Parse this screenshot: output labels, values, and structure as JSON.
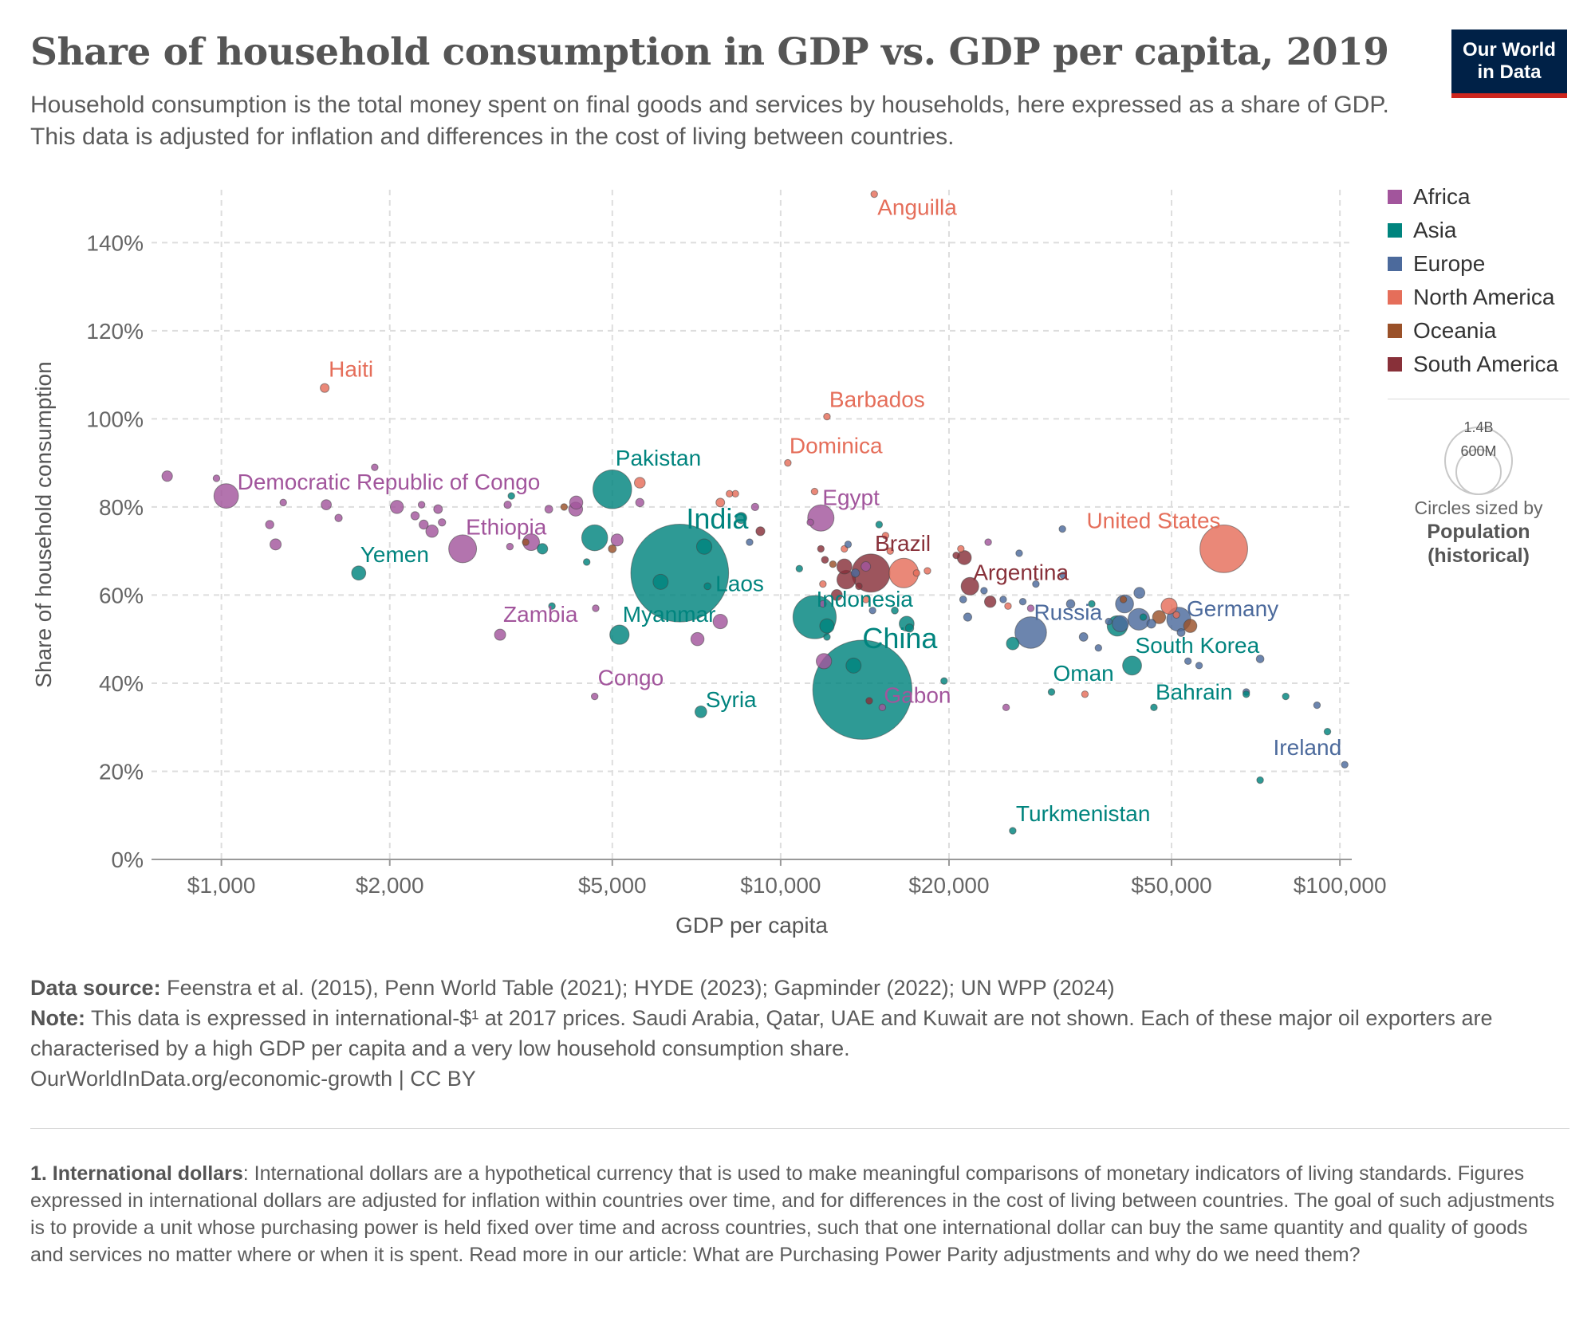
{
  "header": {
    "title": "Share of household consumption in GDP vs. GDP per capita, 2019",
    "subtitle": "Household consumption is the total money spent on final goods and services by households, here expressed as a share of GDP. This data is adjusted for inflation and differences in the cost of living between countries."
  },
  "logo": {
    "line1": "Our World",
    "line2": "in Data"
  },
  "colors": {
    "Africa": "#a2559c",
    "Asia": "#00847e",
    "Europe": "#4c6a9c",
    "North America": "#e56e5a",
    "Oceania": "#9a5129",
    "South America": "#883039"
  },
  "legend": {
    "items": [
      "Africa",
      "Asia",
      "Europe",
      "North America",
      "Oceania",
      "South America"
    ],
    "size_max_label": "1.4B",
    "size_min_label": "600M",
    "size_note": "Circles sized by",
    "size_metric_line1": "Population",
    "size_metric_line2": "(historical)"
  },
  "chart_data": {
    "type": "scatter",
    "x_scale": "log",
    "xlabel": "GDP per capita",
    "ylabel": "Share of household consumption",
    "xlim": [
      750,
      105000
    ],
    "ylim": [
      0,
      152
    ],
    "x_ticks": [
      1000,
      2000,
      5000,
      10000,
      20000,
      50000,
      100000
    ],
    "x_tick_labels": [
      "$1,000",
      "$2,000",
      "$5,000",
      "$10,000",
      "$20,000",
      "$50,000",
      "$100,000"
    ],
    "y_ticks": [
      0,
      20,
      40,
      60,
      80,
      100,
      120,
      140
    ],
    "y_tick_labels": [
      "0%",
      "20%",
      "40%",
      "60%",
      "80%",
      "100%",
      "120%",
      "140%"
    ],
    "grid": true,
    "labeled_points": [
      {
        "name": "Anguilla",
        "x": 14700,
        "y": 151,
        "region": "North America",
        "pop_m": 0.015
      },
      {
        "name": "Haiti",
        "x": 1530,
        "y": 107,
        "region": "North America",
        "pop_m": 11.3
      },
      {
        "name": "Barbados",
        "x": 12100,
        "y": 100.5,
        "region": "North America",
        "pop_m": 0.28
      },
      {
        "name": "Dominica",
        "x": 10300,
        "y": 90,
        "region": "North America",
        "pop_m": 0.07
      },
      {
        "name": "Democratic Republic of Congo",
        "x": 1020,
        "y": 82.5,
        "region": "Africa",
        "pop_m": 87
      },
      {
        "name": "Pakistan",
        "x": 5000,
        "y": 84,
        "region": "Asia",
        "pop_m": 216
      },
      {
        "name": "Egypt",
        "x": 11800,
        "y": 77.5,
        "region": "Africa",
        "pop_m": 100
      },
      {
        "name": "India",
        "x": 6600,
        "y": 65,
        "region": "Asia",
        "pop_m": 1380
      },
      {
        "name": "Laos",
        "x": 7400,
        "y": 62,
        "region": "Asia",
        "pop_m": 7
      },
      {
        "name": "Ethiopia",
        "x": 2700,
        "y": 70.5,
        "region": "Africa",
        "pop_m": 112
      },
      {
        "name": "Yemen",
        "x": 1760,
        "y": 65,
        "region": "Asia",
        "pop_m": 29
      },
      {
        "name": "Brazil",
        "x": 14500,
        "y": 65,
        "region": "South America",
        "pop_m": 211
      },
      {
        "name": "Indonesia",
        "x": 11500,
        "y": 55,
        "region": "Asia",
        "pop_m": 270
      },
      {
        "name": "Argentina",
        "x": 21800,
        "y": 62,
        "region": "South America",
        "pop_m": 45
      },
      {
        "name": "United States",
        "x": 62000,
        "y": 70.5,
        "region": "North America",
        "pop_m": 328
      },
      {
        "name": "Germany",
        "x": 51500,
        "y": 54.5,
        "region": "Europe",
        "pop_m": 83
      },
      {
        "name": "Russia",
        "x": 28000,
        "y": 51.5,
        "region": "Europe",
        "pop_m": 144
      },
      {
        "name": "South Korea",
        "x": 42500,
        "y": 44,
        "region": "Asia",
        "pop_m": 52
      },
      {
        "name": "Zambia",
        "x": 3150,
        "y": 51,
        "region": "Africa",
        "pop_m": 18
      },
      {
        "name": "Myanmar",
        "x": 5150,
        "y": 51,
        "region": "Asia",
        "pop_m": 54
      },
      {
        "name": "China",
        "x": 14000,
        "y": 38.5,
        "region": "Asia",
        "pop_m": 1420
      },
      {
        "name": "Congo",
        "x": 4650,
        "y": 37,
        "region": "Africa",
        "pop_m": 5.4
      },
      {
        "name": "Syria",
        "x": 7200,
        "y": 33.5,
        "region": "Asia",
        "pop_m": 20
      },
      {
        "name": "Gabon",
        "x": 15200,
        "y": 34.5,
        "region": "Africa",
        "pop_m": 2.2
      },
      {
        "name": "Oman",
        "x": 30500,
        "y": 38,
        "region": "Asia",
        "pop_m": 4.9
      },
      {
        "name": "Bahrain",
        "x": 46500,
        "y": 34.5,
        "region": "Asia",
        "pop_m": 1.6
      },
      {
        "name": "Ireland",
        "x": 102000,
        "y": 21.5,
        "region": "Europe",
        "pop_m": 4.9
      },
      {
        "name": "Turkmenistan",
        "x": 26000,
        "y": 6.5,
        "region": "Asia",
        "pop_m": 6
      }
    ],
    "points": [
      [
        800,
        87,
        "Africa",
        16
      ],
      [
        980,
        86.5,
        "Africa",
        6
      ],
      [
        1220,
        76,
        "Africa",
        10
      ],
      [
        1250,
        71.5,
        "Africa",
        18
      ],
      [
        1290,
        81,
        "Africa",
        6
      ],
      [
        1540,
        80.5,
        "Africa",
        15
      ],
      [
        1620,
        77.5,
        "Africa",
        8
      ],
      [
        1880,
        89,
        "Africa",
        2
      ],
      [
        2060,
        80,
        "Africa",
        25
      ],
      [
        2220,
        78,
        "Africa",
        10
      ],
      [
        2280,
        80.5,
        "Africa",
        5
      ],
      [
        2300,
        76,
        "Africa",
        12
      ],
      [
        2380,
        74.5,
        "Africa",
        22
      ],
      [
        2440,
        79.5,
        "Africa",
        11
      ],
      [
        2480,
        76.5,
        "Africa",
        8
      ],
      [
        3250,
        80.5,
        "Africa",
        8
      ],
      [
        3280,
        71,
        "Africa",
        6
      ],
      [
        3580,
        72,
        "Africa",
        40
      ],
      [
        3850,
        79.5,
        "Africa",
        9
      ],
      [
        4300,
        79.5,
        "Africa",
        28
      ],
      [
        4310,
        81,
        "Africa",
        25
      ],
      [
        4670,
        57,
        "Africa",
        6
      ],
      [
        5100,
        72.5,
        "Africa",
        21
      ],
      [
        5600,
        81,
        "Africa",
        10
      ],
      [
        7100,
        50,
        "Africa",
        25
      ],
      [
        7800,
        54,
        "Africa",
        30
      ],
      [
        9000,
        80,
        "Africa",
        8
      ],
      [
        11300,
        76.5,
        "Africa",
        2
      ],
      [
        11900,
        58,
        "Africa",
        1.3
      ],
      [
        11950,
        45,
        "Africa",
        34
      ],
      [
        14200,
        66.5,
        "Africa",
        13
      ],
      [
        23500,
        72,
        "Africa",
        2.5
      ],
      [
        25300,
        34.5,
        "Africa",
        1.3
      ],
      [
        28000,
        57,
        "Africa",
        0.9
      ],
      [
        3300,
        82.5,
        "Asia",
        1
      ],
      [
        3750,
        70.5,
        "Asia",
        16
      ],
      [
        3900,
        57.5,
        "Asia",
        0.8
      ],
      [
        4500,
        67.5,
        "Asia",
        2
      ],
      [
        4650,
        73,
        "Asia",
        97
      ],
      [
        6100,
        63,
        "Asia",
        33
      ],
      [
        7300,
        71,
        "Asia",
        34
      ],
      [
        8500,
        77.5,
        "Asia",
        18
      ],
      [
        10800,
        66,
        "Asia",
        4
      ],
      [
        12100,
        50.5,
        "Asia",
        6
      ],
      [
        12100,
        53,
        "Asia",
        30
      ],
      [
        13500,
        44,
        "Asia",
        33
      ],
      [
        15000,
        76,
        "Asia",
        2
      ],
      [
        16000,
        56.5,
        "Asia",
        7
      ],
      [
        16800,
        53.5,
        "Asia",
        32
      ],
      [
        17000,
        52.5,
        "Asia",
        10
      ],
      [
        19600,
        40.5,
        "Asia",
        4
      ],
      [
        26000,
        49,
        "Asia",
        23
      ],
      [
        36000,
        58,
        "Asia",
        3
      ],
      [
        40000,
        53,
        "Asia",
        60
      ],
      [
        44500,
        55,
        "Asia",
        0.8
      ],
      [
        68000,
        37.5,
        "Asia",
        0.5
      ],
      [
        80000,
        37,
        "Asia",
        1.2
      ],
      [
        95000,
        29,
        "Asia",
        5.7
      ],
      [
        72000,
        18,
        "Asia",
        0.6
      ],
      [
        8800,
        72,
        "Europe",
        3
      ],
      [
        13200,
        71.5,
        "Europe",
        2
      ],
      [
        13600,
        65,
        "Europe",
        10
      ],
      [
        14600,
        56.5,
        "Europe",
        3.8
      ],
      [
        21200,
        59,
        "Europe",
        7
      ],
      [
        21600,
        55,
        "Europe",
        9.7
      ],
      [
        23100,
        61,
        "Europe",
        4
      ],
      [
        25000,
        59,
        "Europe",
        2
      ],
      [
        26700,
        69.5,
        "Europe",
        1.9
      ],
      [
        27100,
        58.5,
        "Europe",
        2.1
      ],
      [
        28600,
        62.5,
        "Europe",
        5
      ],
      [
        32000,
        64.5,
        "Europe",
        4
      ],
      [
        33000,
        58,
        "Europe",
        10.3
      ],
      [
        34800,
        50.5,
        "Europe",
        10.7
      ],
      [
        37000,
        48,
        "Europe",
        5.5
      ],
      [
        38600,
        54,
        "Europe",
        1.3
      ],
      [
        40500,
        53.5,
        "Europe",
        38
      ],
      [
        41200,
        58,
        "Europe",
        47
      ],
      [
        43700,
        54.5,
        "Europe",
        67
      ],
      [
        43800,
        60.5,
        "Europe",
        17.3
      ],
      [
        46000,
        53.5,
        "Europe",
        11.5
      ],
      [
        52000,
        51.5,
        "Europe",
        9
      ],
      [
        53500,
        45,
        "Europe",
        5.5
      ],
      [
        56000,
        44,
        "Europe",
        5.8
      ],
      [
        68000,
        38,
        "Europe",
        5.3
      ],
      [
        72000,
        45.5,
        "Europe",
        8.5
      ],
      [
        91000,
        35,
        "Europe",
        0.6
      ],
      [
        31900,
        75,
        "Europe",
        0.3
      ],
      [
        5600,
        85.5,
        "North America",
        17
      ],
      [
        7800,
        81,
        "North America",
        11
      ],
      [
        8100,
        83,
        "North America",
        0.2
      ],
      [
        8300,
        83,
        "North America",
        0.4
      ],
      [
        11500,
        83.5,
        "North America",
        0.1
      ],
      [
        11900,
        62.5,
        "North America",
        1
      ],
      [
        13000,
        70.5,
        "North America",
        6.4
      ],
      [
        14200,
        59,
        "North America",
        4.7
      ],
      [
        15400,
        73.5,
        "North America",
        0.11
      ],
      [
        15700,
        70,
        "North America",
        4
      ],
      [
        16600,
        65,
        "North America",
        126
      ],
      [
        17500,
        65,
        "North America",
        5
      ],
      [
        18300,
        65.5,
        "North America",
        4.3
      ],
      [
        21000,
        70.5,
        "North America",
        2.9
      ],
      [
        25500,
        57.5,
        "North America",
        0.4
      ],
      [
        35000,
        37.5,
        "North America",
        0.6
      ],
      [
        49500,
        57.5,
        "North America",
        37.4
      ],
      [
        51000,
        55.5,
        "North America",
        1.4
      ],
      [
        3500,
        72,
        "Oceania",
        0.3
      ],
      [
        4100,
        80,
        "Oceania",
        0.2
      ],
      [
        5000,
        70.5,
        "Oceania",
        9
      ],
      [
        12400,
        67,
        "Oceania",
        0.9
      ],
      [
        41000,
        59,
        "Oceania",
        4.9
      ],
      [
        47500,
        55,
        "Oceania",
        25
      ],
      [
        54000,
        53,
        "Oceania",
        25.4
      ],
      [
        9200,
        74.5,
        "South America",
        11.5
      ],
      [
        11800,
        70.5,
        "South America",
        0.8
      ],
      [
        12000,
        68,
        "South America",
        7
      ],
      [
        12600,
        60,
        "South America",
        17.4
      ],
      [
        13000,
        66.5,
        "South America",
        32.5
      ],
      [
        13100,
        63.5,
        "South America",
        50
      ],
      [
        13800,
        62,
        "South America",
        6.3
      ],
      [
        14400,
        36,
        "South America",
        0.6
      ],
      [
        20600,
        69,
        "South America",
        3.4
      ],
      [
        21300,
        68.5,
        "South America",
        28.5
      ],
      [
        23700,
        58.5,
        "South America",
        19
      ]
    ]
  },
  "footer": {
    "source_label": "Data source:",
    "source_text": "Feenstra et al. (2015), Penn World Table (2021); HYDE (2023); Gapminder (2022); UN WPP (2024)",
    "note_label": "Note:",
    "note_text": "This data is expressed in international-$¹ at 2017 prices. Saudi Arabia, Qatar, UAE and Kuwait are not shown. Each of these major oil exporters are characterised by a high GDP per capita and a very low household consumption share.",
    "url": "OurWorldInData.org/economic-growth | CC BY",
    "footnote_label": "1. International dollars",
    "footnote_text": ": International dollars are a hypothetical currency that is used to make meaningful comparisons of monetary indicators of living standards. Figures expressed in international dollars are adjusted for inflation within countries over time, and for differences in the cost of living between countries. The goal of such adjustments is to provide a unit whose purchasing power is held fixed over time and across countries, such that one international dollar can buy the same quantity and quality of goods and services no matter where or when it is spent. Read more in our article: What are Purchasing Power Parity adjustments and why do we need them?"
  }
}
